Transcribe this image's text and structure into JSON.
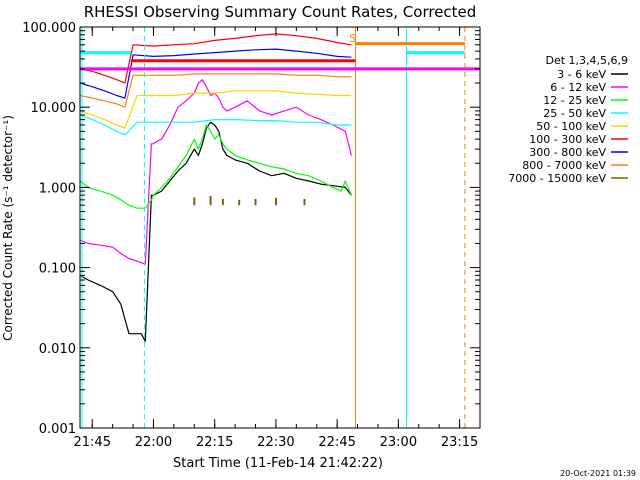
{
  "chart_data": {
    "type": "line",
    "title": "RHESSI Observing Summary Count Rates, Corrected",
    "xlabel": "Start Time (11-Feb-14 21:42:22)",
    "ylabel": "Corrected Count Rate (s⁻¹ detector⁻¹)",
    "x_unit": "minutes after 21:40",
    "x_range": [
      2,
      100
    ],
    "y_scale": "log",
    "y_range": [
      0.001,
      100
    ],
    "x_ticks": [
      {
        "x": 5,
        "label": "21:45"
      },
      {
        "x": 20,
        "label": "22:00"
      },
      {
        "x": 35,
        "label": "22:15"
      },
      {
        "x": 50,
        "label": "22:30"
      },
      {
        "x": 65,
        "label": "22:45"
      },
      {
        "x": 80,
        "label": "23:00"
      },
      {
        "x": 95,
        "label": "23:15"
      }
    ],
    "y_ticks": [
      {
        "y": 100,
        "label": "100.000"
      },
      {
        "y": 10,
        "label": "10.000"
      },
      {
        "y": 1,
        "label": "1.000"
      },
      {
        "y": 0.1,
        "label": "0.100"
      },
      {
        "y": 0.01,
        "label": "0.010"
      },
      {
        "y": 0.001,
        "label": "0.001"
      }
    ],
    "legend_title": "Det 1,3,4,5,6,9",
    "legend_position": "right-outside",
    "series": [
      {
        "name": "3 - 6 keV",
        "color": "#000000",
        "x": [
          2,
          4,
          7,
          10,
          12,
          14,
          16,
          17,
          18,
          19.5,
          20,
          21,
          22,
          24,
          26,
          28,
          30,
          31,
          32,
          33,
          34,
          35,
          36,
          37,
          38,
          40,
          43,
          46,
          49,
          52,
          55,
          58,
          61,
          64,
          67,
          68.5
        ],
        "y": [
          0.08,
          0.07,
          0.06,
          0.05,
          0.035,
          0.015,
          0.015,
          0.015,
          0.012,
          0.8,
          0.8,
          0.85,
          0.9,
          1.2,
          1.6,
          2.0,
          3.0,
          2.5,
          3.5,
          5.5,
          6.5,
          6.0,
          5.0,
          3.0,
          2.5,
          2.2,
          2.0,
          1.6,
          1.4,
          1.5,
          1.3,
          1.2,
          1.1,
          1.05,
          1.0,
          0.8
        ]
      },
      {
        "name": "6 - 12 keV",
        "color": "#ff00ff",
        "x": [
          2,
          4,
          7,
          10,
          12,
          14,
          16,
          18,
          19.5,
          20,
          21,
          22,
          24,
          26,
          28,
          30,
          31,
          32,
          33,
          34,
          35,
          36,
          37,
          38,
          40,
          43,
          46,
          49,
          52,
          55,
          58,
          61,
          64,
          67,
          68.5
        ],
        "y": [
          0.22,
          0.2,
          0.19,
          0.18,
          0.15,
          0.13,
          0.12,
          0.11,
          3.5,
          3.5,
          3.8,
          4.0,
          6.0,
          10,
          12,
          15,
          20,
          22,
          18,
          14,
          15,
          13,
          10,
          9,
          10,
          12,
          9,
          8,
          9,
          10,
          8,
          7,
          6,
          5,
          2.5
        ]
      },
      {
        "name": "12 - 25 keV",
        "color": "#00ff00",
        "x": [
          2,
          4,
          7,
          10,
          12,
          14,
          16,
          18,
          19.5,
          20,
          22,
          24,
          26,
          28,
          30,
          31,
          32,
          33,
          34,
          35,
          36,
          37,
          38,
          40,
          43,
          46,
          49,
          52,
          55,
          58,
          61,
          64,
          66,
          67,
          68.5
        ],
        "y": [
          1.2,
          1.0,
          0.9,
          0.8,
          0.7,
          0.6,
          0.55,
          0.55,
          0.7,
          0.8,
          1.0,
          1.3,
          1.8,
          2.5,
          4.0,
          3.0,
          4.0,
          6.0,
          5.0,
          4.0,
          4.5,
          3.5,
          3.0,
          2.5,
          2.2,
          2.0,
          1.8,
          1.7,
          1.5,
          1.4,
          1.2,
          1.0,
          0.9,
          1.2,
          0.8
        ]
      },
      {
        "name": "25 - 50 keV",
        "color": "#00ffff",
        "x": [
          2,
          5,
          8,
          11,
          13,
          16,
          20,
          25,
          30,
          35,
          40,
          45,
          50,
          55,
          60,
          65,
          68.5
        ],
        "y": [
          8,
          7,
          6,
          5,
          4.5,
          6.5,
          6.5,
          6.5,
          6.5,
          7,
          7,
          6.8,
          6.8,
          6.5,
          6.5,
          6,
          6
        ]
      },
      {
        "name": "50 - 100 keV",
        "color": "#ffd000",
        "x": [
          2,
          5,
          8,
          11,
          13,
          16,
          20,
          25,
          30,
          35,
          40,
          45,
          50,
          55,
          60,
          65,
          68.5
        ],
        "y": [
          9,
          8,
          7,
          6,
          5.5,
          14,
          14,
          14,
          15,
          15,
          16,
          16,
          16,
          15,
          14.5,
          14,
          14
        ]
      },
      {
        "name": "100 - 300 keV",
        "color": "#ff0000",
        "x": [
          2,
          5,
          8,
          11,
          13,
          15,
          20,
          25,
          30,
          35,
          40,
          45,
          50,
          55,
          60,
          65,
          68.5
        ],
        "y": [
          30,
          28,
          25,
          22,
          20,
          60,
          58,
          60,
          62,
          68,
          72,
          78,
          82,
          78,
          72,
          64,
          60
        ]
      },
      {
        "name": "300 - 800 keV",
        "color": "#0000ff",
        "x": [
          2,
          5,
          8,
          11,
          13,
          15,
          20,
          25,
          30,
          35,
          40,
          45,
          50,
          55,
          60,
          65,
          68.5
        ],
        "y": [
          20,
          18,
          16,
          14,
          13,
          45,
          43,
          44,
          46,
          48,
          50,
          52,
          53,
          50,
          47,
          43,
          42
        ]
      },
      {
        "name": "800 - 7000 keV",
        "color": "#ff8000",
        "x": [
          2,
          5,
          8,
          11,
          13,
          15,
          20,
          25,
          30,
          35,
          40,
          45,
          50,
          55,
          60,
          65,
          68.5
        ],
        "y": [
          14,
          13,
          12,
          11,
          10,
          25,
          25,
          25,
          26,
          26,
          26,
          26,
          26,
          25,
          25,
          24,
          24
        ]
      },
      {
        "name": "7000 - 15000 keV",
        "color": "#806000",
        "x": [],
        "y": []
      }
    ],
    "flags": {
      "vertical_lines": [
        {
          "x": 2.5,
          "color": "#00ffff",
          "style": "solid"
        },
        {
          "x": 17.8,
          "color": "#00ffff",
          "style": "dashed"
        },
        {
          "x": 69.5,
          "color": "#ff8000",
          "style": "solid"
        },
        {
          "x": 82,
          "color": "#00ffff",
          "style": "solid"
        },
        {
          "x": 96.3,
          "color": "#ff8000",
          "style": "dashed"
        }
      ],
      "horizontal_segments": [
        {
          "x0": 2,
          "x1": 100,
          "y": 30,
          "color": "#ff00ff"
        },
        {
          "x0": 2,
          "x1": 14.5,
          "y": 48,
          "color": "#00ffff"
        },
        {
          "x0": 82,
          "x1": 96.3,
          "y": 48,
          "color": "#00ffff"
        },
        {
          "x0": 69.5,
          "x1": 96.3,
          "y": 62,
          "color": "#ff8000"
        },
        {
          "x0": 14.5,
          "x1": 69.5,
          "y": 38,
          "color": "#ff0000"
        }
      ],
      "markers": [
        {
          "x": 68.8,
          "y": 65,
          "text": "S",
          "color": "#ff8000"
        }
      ],
      "ticks_7000": [
        {
          "x": 30,
          "y0": 0.6,
          "y1": 0.75
        },
        {
          "x": 34,
          "y0": 0.6,
          "y1": 0.78
        },
        {
          "x": 37,
          "y0": 0.6,
          "y1": 0.72
        },
        {
          "x": 41,
          "y0": 0.6,
          "y1": 0.7
        },
        {
          "x": 45,
          "y0": 0.6,
          "y1": 0.72
        },
        {
          "x": 50,
          "y0": 0.6,
          "y1": 0.74
        },
        {
          "x": 57,
          "y0": 0.6,
          "y1": 0.72
        }
      ]
    }
  },
  "footer": {
    "timestamp": "20-Oct-2021 01:39"
  }
}
